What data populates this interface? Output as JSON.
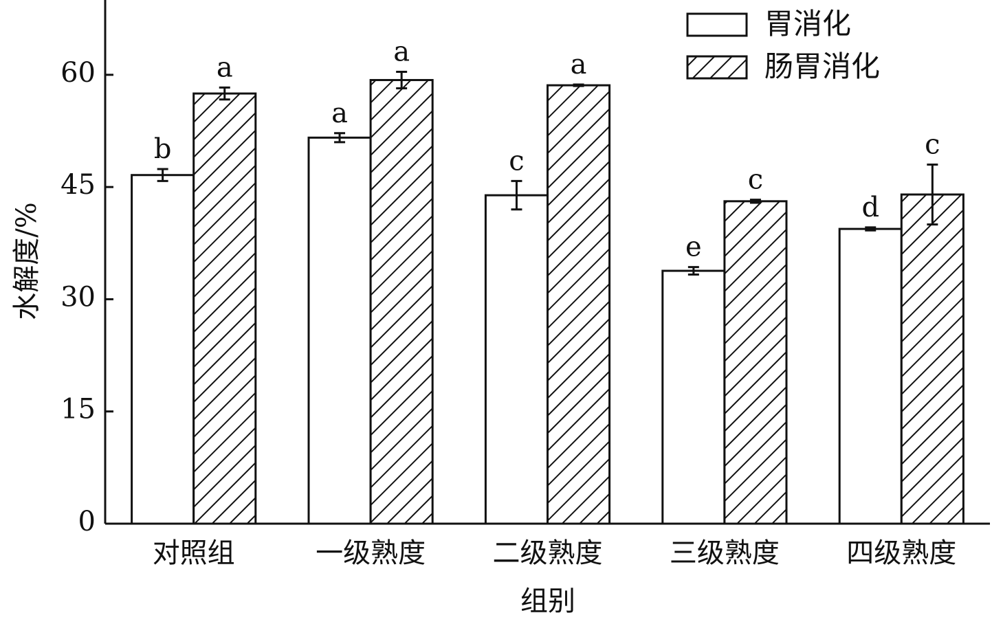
{
  "chart_data": {
    "type": "bar",
    "x_label": "组别",
    "y_label": "水解度/%",
    "categories": [
      "对照组",
      "一级熟度",
      "二级熟度",
      "三级熟度",
      "四级熟度"
    ],
    "series": [
      {
        "name": "胃消化",
        "color": "#ffffff",
        "hatch": false,
        "values": [
          46.6,
          51.6,
          43.9,
          33.8,
          39.4
        ],
        "errors": [
          0.8,
          0.6,
          1.9,
          0.5,
          0.2
        ],
        "letters": [
          "b",
          "a",
          "c",
          "e",
          "d"
        ]
      },
      {
        "name": "肠胃消化",
        "color": "#ffffff",
        "hatch": true,
        "values": [
          57.5,
          59.3,
          58.6,
          43.1,
          44.0
        ],
        "errors": [
          0.8,
          1.1,
          0.1,
          0.2,
          4.0
        ],
        "letters": [
          "a",
          "a",
          "a",
          "c",
          "c"
        ]
      }
    ],
    "ylim": [
      0,
      70
    ],
    "yticks": [
      0,
      15,
      30,
      45,
      60
    ],
    "grid": false,
    "legend": "upper right"
  }
}
